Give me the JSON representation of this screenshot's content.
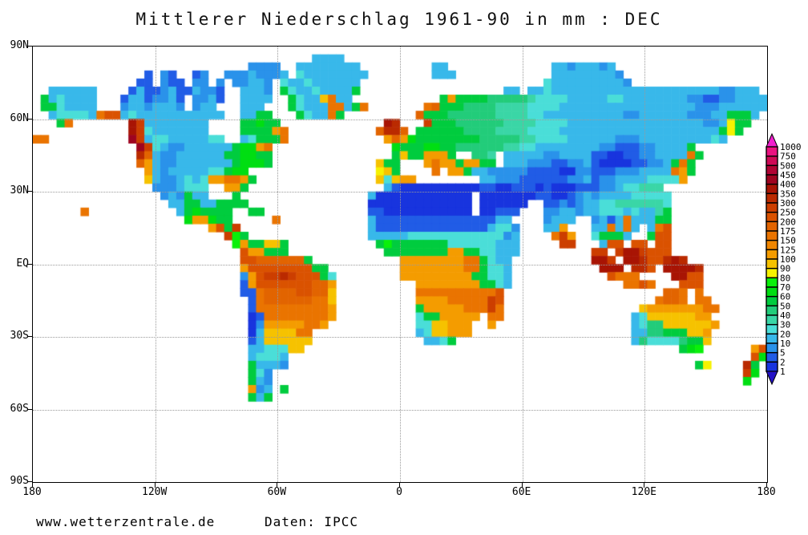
{
  "title": "Mittlerer Niederschlag 1961-90 in mm : DEC",
  "footer": {
    "site": "www.wetterzentrale.de",
    "source": "Daten: IPCC"
  },
  "axes": {
    "lat_labels": [
      "90N",
      "60N",
      "30N",
      "EQ",
      "30S",
      "60S",
      "90S"
    ],
    "lon_labels": [
      "180",
      "120W",
      "60W",
      "0",
      "60E",
      "120E",
      "180"
    ]
  },
  "colors": {
    "background": "#ffffff",
    "frame": "#000000",
    "grid_dots": "#9a9a9a",
    "text": "#000000"
  },
  "chart_data": {
    "type": "heatmap",
    "title": "Mittlerer Niederschlag 1961-90 in mm : DEC",
    "variable": "mean precipitation",
    "units": "mm",
    "period": "1961-90",
    "month": "DEC",
    "source": "Daten: IPCC",
    "site": "www.wetterzentrale.de",
    "projection": "equirectangular lon -180..180 (left to right), lat 90N..90S (top to bottom)",
    "legend": {
      "position": "right",
      "tick_values": [
        1000,
        750,
        500,
        450,
        400,
        350,
        300,
        250,
        200,
        175,
        150,
        125,
        100,
        90,
        80,
        70,
        60,
        50,
        40,
        30,
        20,
        10,
        5,
        2,
        1
      ],
      "box_colors_top_to_bottom": [
        "#EA1280",
        "#CE0A56",
        "#B00434",
        "#9E0420",
        "#A81404",
        "#BA2A00",
        "#CC3E00",
        "#DA5200",
        "#E26400",
        "#EA7400",
        "#F08600",
        "#F49C00",
        "#F6C200",
        "#F6F200",
        "#0AF00A",
        "#00DE12",
        "#00CC3E",
        "#22CC7A",
        "#3AD6A6",
        "#4ADED8",
        "#38B8EA",
        "#2A92EA",
        "#215CE6",
        "#1834DE"
      ],
      "arrow_top_color": "#F120CE",
      "arrow_bottom_color": "#2412C6"
    },
    "grid": {
      "cols": 92,
      "rows": 54,
      "lon_range": [
        -180,
        180
      ],
      "lat_range": [
        90,
        -90
      ],
      "palette": {
        "1": "#1834DE",
        "2": "#215CE6",
        "3": "#2A92EA",
        "4": "#38B8EA",
        "5": "#4ADED8",
        "6": "#3AD6A6",
        "7": "#22CC7A",
        "8": "#00CC3E",
        "9": "#00DE12",
        "a": "#0AF00A",
        "b": "#F6F200",
        "c": "#F6C200",
        "d": "#F49C00",
        "e": "#F08600",
        "f": "#EA7400",
        "g": "#E26400",
        "h": "#DA5200",
        "i": "#CC3E00",
        "j": "#BA2A00",
        "k": "#A81404",
        "l": "#9E0420",
        "m": "#B00434",
        "n": "#CE0A56",
        "o": "#EA1280"
      },
      "cells": [
        [
          "..........",
          "..........",
          "..........",
          "..........",
          "..........",
          "..........",
          "..........",
          "..........",
          "..........",
          ".."
        ],
        [
          "..........",
          "..........",
          "..........",
          ".....4444.",
          "..........",
          "..........",
          "..........",
          "..........",
          "..........",
          ".."
        ],
        [
          "..........",
          "..........",
          ".......333",
          "3..4444444",
          "4.........",
          "44........",
          ".....44344",
          "434.......",
          "..........",
          ".."
        ],
        [
          "..........",
          "....2.32..",
          "23..333433",
          "34.5444444",
          "44........",
          "444.......",
          ".....44444",
          "4443......",
          "..........",
          ".."
        ],
        [
          "..........",
          "...22.322.",
          "33.3.33443",
          ".544544444",
          "4.........",
          "..........",
          "....544444",
          "44443.....",
          "..........",
          ".."
        ],
        [
          "..444444..",
          "..24223422",
          "4332..4443",
          ".854454444",
          "8.........",
          ".........4",
          "4.44544444",
          "4444444444",
          "4444443344",
          "4."
        ],
        [
          ".8454444..",
          ".24423342.",
          "3342..4444",
          "..8544cf44",
          "..........",
          ".8d8888777",
          "7765555444",
          "4455444444",
          "4433223344",
          "44"
        ],
        [
          ".8854444..",
          ".34434443.",
          "344...444.",
          "..85444ff4",
          "8f.......f",
          "g888777766",
          "6655554444",
          "4444444444",
          "4443334444",
          "44"
        ],
        [
          "..455554fh",
          "h454444444",
          "4444..4488",
          "...8544f8.",
          "........g8",
          "8877777766",
          "6655444444",
          "4444334444",
          "4433344888",
          "4."
        ],
        [
          "...8f.....",
          "..ki444444",
          "44....8898",
          "8.........",
          "....kj...i",
          "8887777776",
          "6665555444",
          "4444444444",
          "4444334b88",
          ".."
        ],
        [
          "..........",
          "..ki544444",
          "44....8888",
          "df........",
          "...gjjg.88",
          "8888777766",
          "6655554444",
          "4444444444",
          "4444448b8.",
          ".."
        ],
        [
          "ff........",
          "..li455444",
          "4455..4588",
          "8f........",
          "....dgd988",
          "8888887777",
          "7665555444",
          "4443334444",
          "4444454...",
          ".."
        ],
        [
          "..........",
          "...li54334",
          "44444899df",
          "..........",
          ".....98889",
          "9887777776",
          "6554444444",
          "4332223344",
          "448.......",
          ".."
        ],
        [
          "..........",
          "...jg43344",
          "4444889988",
          "..........",
          ".....8c88d",
          "dd8..776.4",
          "4444334444",
          "2211223344",
          "44f8......",
          ".."
        ],
        [
          "..........",
          "...gd43344",
          "4444489998",
          "..........",
          "...c88...d",
          "fdd8dd88.4",
          "4433322334",
          "2111122334",
          "8f8.......",
          ".."
        ],
        [
          "..........",
          "....d43444",
          "4455899...",
          "..........",
          "...bc8....",
          "f.dd844333",
          "3322221133",
          "2223334444",
          "fd8.......",
          ".."
        ],
        [
          "..........",
          "....c43345",
          "45ddffd8..",
          "..........",
          "...c5cdd..",
          "......4433",
          "3222222334",
          "2334444555",
          "5d........",
          ".."
        ],
        [
          "..........",
          ".....33345",
          "55..dd8...",
          "..........",
          "....421111",
          "1111112211",
          "2221211122",
          "233455666.",
          "..........",
          ".."
        ],
        [
          "..........",
          "......3438",
          "44...8....",
          "..........",
          "..41111111",
          "11111.1111",
          "1112211234",
          "3444455555",
          "..........",
          ".."
        ],
        [
          "..........",
          ".......448",
          "8448888...",
          "..........",
          "..11111111",
          "11111.1111",
          "11..223234",
          "4556666665",
          "..........",
          ".."
        ],
        [
          "......f...",
          "........48",
          "98888..88.",
          "..........",
          "..22111111",
          "11111.1122",
          "2...334434",
          "4555454468",
          "..........",
          ".."
        ],
        [
          "..........",
          ".........9",
          "dd988.....",
          "f.........",
          "..42222222",
          "2222222244",
          "....3444..",
          "3424f44488",
          "..........",
          ".."
        ],
        [
          "..........",
          "..........",
          "..dh8i....",
          "..........",
          "..42222222",
          "2222222455",
          "3...44d...",
          "44f4f4.4fh",
          "..........",
          ".."
        ],
        [
          "..........",
          "..........",
          "....ia8...",
          "..........",
          "..44444555",
          "5555555553",
          "4....fid..",
          "58884..8hh",
          "..........",
          ".."
        ],
        [
          "..........",
          "..........",
          ".....ad88c",
          "c8........",
          "...8a88888",
          "8855555544",
          "4.....ii..",
          ".4hh.hh.hh",
          "..........",
          ".."
        ],
        [
          "..........",
          "..........",
          "......hdd8",
          "88........",
          "....888888",
          "88dd885544",
          "4.........",
          "ii.ikkihhh",
          "..........",
          ".."
        ],
        [
          "..........",
          "..........",
          "......hhgg",
          "gggg8.....",
          "......dddd",
          "ddddff8544",
          "..........",
          "kki.kkjhhj",
          "kj........",
          ".."
        ],
        [
          "..........",
          "..........",
          "......dhhh",
          "hhhhh88...",
          "......dddd",
          "ddddff8554",
          "..........",
          ".kkk.jjh.k",
          "kkkj......",
          ".."
        ],
        [
          "..........",
          "..........",
          "......3dhi",
          "ijihhh85..",
          "......dddd",
          "ddddd88554",
          "..........",
          "..hfff....",
          "kkhh......",
          ".."
        ],
        [
          "..........",
          "..........",
          "......2dhh",
          "hhhhhggd..",
          "........dd",
          "dddddd8854",
          "..........",
          "....ffhf..",
          ".hhh......",
          ".."
        ],
        [
          "..........",
          "..........",
          "......22fg",
          "ggghhggc..",
          "........ff",
          "ffffffffh.",
          "..........",
          ".........g",
          "gf.f......",
          ".."
        ],
        [
          "..........",
          "..........",
          ".......2fg",
          "gggggffc..",
          "........dd",
          "ddfffffih.",
          "..........",
          "........fg",
          "gf.ff.....",
          ".."
        ],
        [
          "..........",
          "..........",
          ".......2ff",
          "fffffffd..",
          "........8d",
          "ddddfffif.",
          "..........",
          "......cddd",
          "ddddff....",
          ".."
        ],
        [
          "..........",
          "..........",
          ".......12f",
          "fffffffd..",
          "........58",
          "8ddddd.ff.",
          "..........",
          ".....45ccc",
          "cccdd.....",
          ".."
        ],
        [
          "..........",
          "..........",
          ".......13d",
          "ddddffd...",
          "........55",
          "ccddd..d..",
          "..........",
          ".....4577c",
          "cccccd....",
          ".."
        ],
        [
          "..........",
          "..........",
          ".......14c",
          "cccff.....",
          "........45",
          "ccddd.....",
          "..........",
          ".....44778",
          "88ccd.....",
          ".."
        ],
        [
          "..........",
          "..........",
          ".......24c",
          "ccccc.....",
          ".........4",
          "458.......",
          "..........",
          ".....47555",
          "5788c.....",
          ".."
        ],
        [
          "..........",
          "..........",
          ".......445",
          "55cc......",
          "..........",
          "..........",
          "..........",
          "..........",
          ".89a......",
          "dh"
        ],
        [
          "..........",
          "..........",
          ".......455",
          "54........",
          "..........",
          "..........",
          "..........",
          "..........",
          "..........",
          "h9"
        ],
        [
          "..........",
          "..........",
          ".......844",
          "43........",
          "..........",
          "..........",
          "..........",
          "..........",
          "...8b....j",
          "8."
        ],
        [
          "..........",
          "..........",
          ".......853",
          "..........",
          "..........",
          "..........",
          "..........",
          "..........",
          ".........i",
          "9."
        ],
        [
          "..........",
          "..........",
          ".......843",
          "..........",
          "..........",
          "..........",
          "..........",
          "..........",
          ".........9",
          ".."
        ],
        [
          "..........",
          "..........",
          ".......d34",
          ".8........",
          "..........",
          "..........",
          "..........",
          "..........",
          "..........",
          ".."
        ],
        [
          "..........",
          "..........",
          ".......848",
          "..........",
          "..........",
          "..........",
          "..........",
          "..........",
          "..........",
          ".."
        ],
        [
          "..........",
          "..........",
          "..........",
          "..........",
          "..........",
          "..........",
          "..........",
          "..........",
          "..........",
          ".."
        ],
        [
          "..........",
          "..........",
          "..........",
          "..........",
          "..........",
          "..........",
          "..........",
          "..........",
          "..........",
          ".."
        ],
        [
          "..........",
          "..........",
          "..........",
          "..........",
          "..........",
          "..........",
          "..........",
          "..........",
          "..........",
          ".."
        ],
        [
          "..........",
          "..........",
          "..........",
          "..........",
          "..........",
          "..........",
          "..........",
          "..........",
          "..........",
          ".."
        ],
        [
          "..........",
          "..........",
          "..........",
          "..........",
          "..........",
          "..........",
          "..........",
          "..........",
          "..........",
          ".."
        ],
        [
          "..........",
          "..........",
          "..........",
          "..........",
          "..........",
          "..........",
          "..........",
          "..........",
          "..........",
          ".."
        ],
        [
          "..........",
          "..........",
          "..........",
          "..........",
          "..........",
          "..........",
          "..........",
          "..........",
          "..........",
          ".."
        ],
        [
          "..........",
          "..........",
          "..........",
          "..........",
          "..........",
          "..........",
          "..........",
          "..........",
          "..........",
          ".."
        ],
        [
          "..........",
          "..........",
          "..........",
          "..........",
          "..........",
          "..........",
          "..........",
          "..........",
          "..........",
          ".."
        ],
        [
          "..........",
          "..........",
          "..........",
          "..........",
          "..........",
          "..........",
          "..........",
          "..........",
          "..........",
          ".."
        ]
      ]
    }
  }
}
